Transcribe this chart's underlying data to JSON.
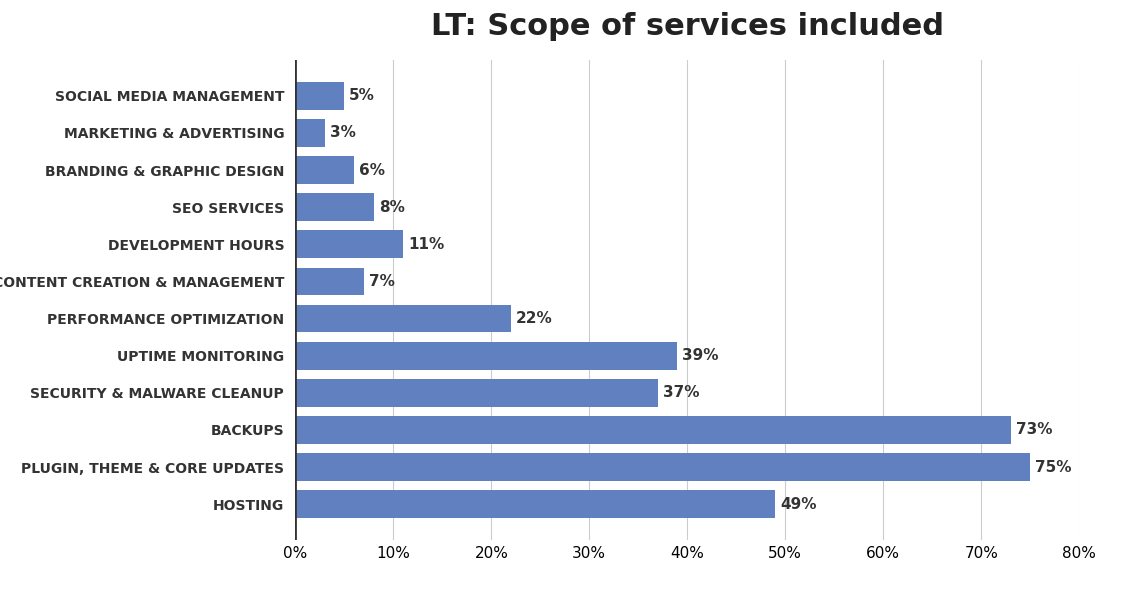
{
  "title": "LT: Scope of services included",
  "categories": [
    "HOSTING",
    "PLUGIN, THEME & CORE UPDATES",
    "BACKUPS",
    "SECURITY & MALWARE CLEANUP",
    "UPTIME MONITORING",
    "PERFORMANCE OPTIMIZATION",
    "CONTENT CREATION & MANAGEMENT",
    "DEVELOPMENT HOURS",
    "SEO SERVICES",
    "BRANDING & GRAPHIC DESIGN",
    "MARKETING & ADVERTISING",
    "SOCIAL MEDIA MANAGEMENT"
  ],
  "values": [
    49,
    75,
    73,
    37,
    39,
    22,
    7,
    11,
    8,
    6,
    3,
    5
  ],
  "bar_color": "#6080c0",
  "label_color": "#333333",
  "title_color": "#222222",
  "background_color": "#ffffff",
  "plot_bg_color": "#f0f0f0",
  "xlim": [
    0,
    80
  ],
  "xticks": [
    0,
    10,
    20,
    30,
    40,
    50,
    60,
    70,
    80
  ],
  "xtick_labels": [
    "0%",
    "10%",
    "20%",
    "30%",
    "40%",
    "50%",
    "60%",
    "70%",
    "80%"
  ],
  "title_fontsize": 22,
  "label_fontsize": 10,
  "value_fontsize": 11,
  "tick_fontsize": 11
}
